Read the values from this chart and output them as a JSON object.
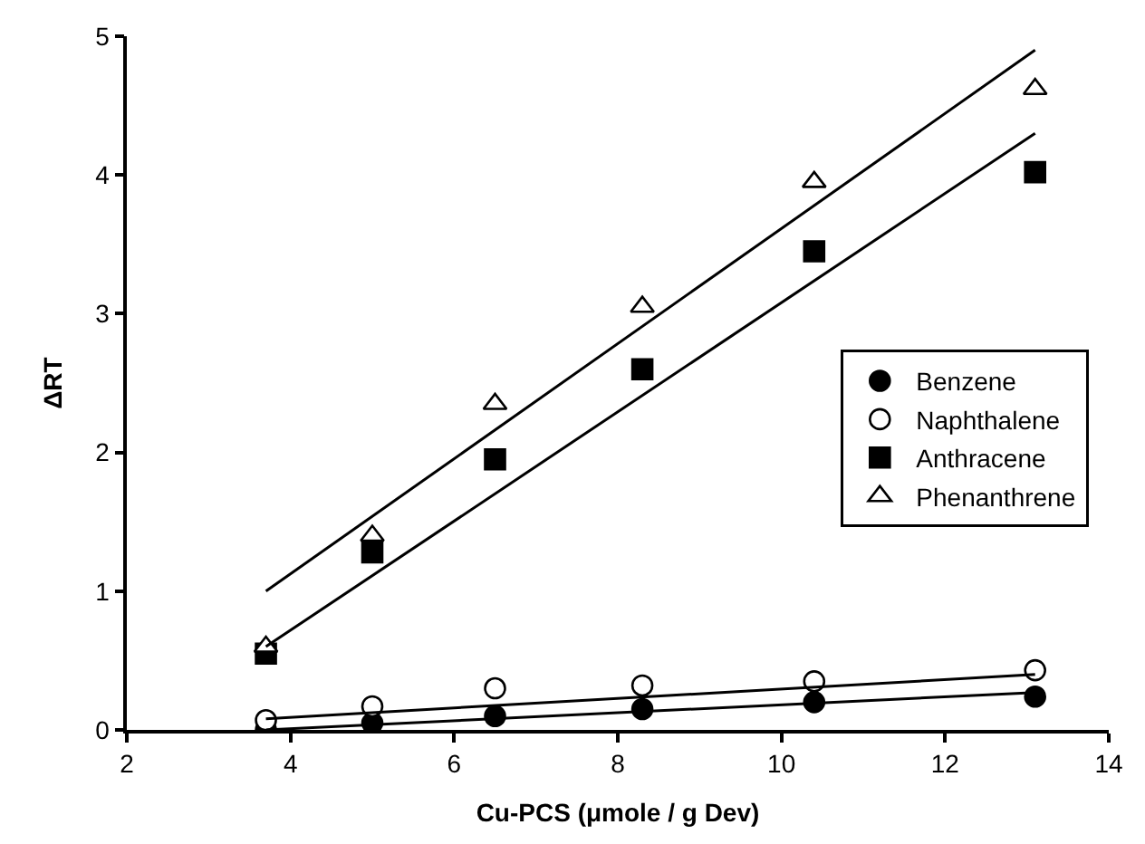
{
  "chart_data": {
    "type": "scatter",
    "xlabel": "Cu-PCS (μmole / g Dev)",
    "ylabel": "ΔRT",
    "xlim": [
      2,
      14
    ],
    "xticks": [
      2,
      4,
      6,
      8,
      10,
      12,
      14
    ],
    "ylim": [
      0,
      5
    ],
    "yticks": [
      0,
      1,
      2,
      3,
      4,
      5
    ],
    "legend": "right",
    "series": [
      {
        "name": "Benzene",
        "color": "#000000",
        "marker": "circle",
        "x": [
          3.7,
          5.0,
          6.5,
          8.3,
          10.4,
          13.1
        ],
        "values": [
          0,
          0.05,
          0.1,
          0.15,
          0.2,
          0.24
        ]
      },
      {
        "name": "Naphthalene",
        "color": "#ffffff",
        "marker": "circle",
        "x": [
          3.7,
          5.0,
          6.5,
          8.3,
          10.4,
          13.1
        ],
        "values": [
          0.07,
          0.17,
          0.3,
          0.32,
          0.35,
          0.43
        ]
      },
      {
        "name": "Anthracene",
        "color": "#000000",
        "marker": "square",
        "x": [
          3.7,
          5.0,
          6.5,
          8.3,
          10.4,
          13.1
        ],
        "values": [
          0.55,
          1.28,
          1.95,
          2.6,
          3.45,
          4.02
        ]
      },
      {
        "name": "Phenanthrene",
        "color": "#ffffff",
        "marker": "triangle",
        "x": [
          3.7,
          5.0,
          6.5,
          8.3,
          10.4,
          13.1
        ],
        "values": [
          0.6,
          1.4,
          2.35,
          3.05,
          3.95,
          4.62
        ]
      },
      {
        "type": "line",
        "color": "#000000",
        "x": [
          3.7,
          13.1
        ],
        "values": [
          0.0,
          0.27
        ]
      },
      {
        "type": "line",
        "color": "#000000",
        "x": [
          3.7,
          13.1
        ],
        "values": [
          0.08,
          0.4
        ]
      },
      {
        "type": "line",
        "color": "#000000",
        "x": [
          3.7,
          13.1
        ],
        "values": [
          0.6,
          4.3
        ]
      },
      {
        "type": "line",
        "color": "#000000",
        "x": [
          3.7,
          13.1
        ],
        "values": [
          1.0,
          4.9
        ]
      }
    ]
  }
}
